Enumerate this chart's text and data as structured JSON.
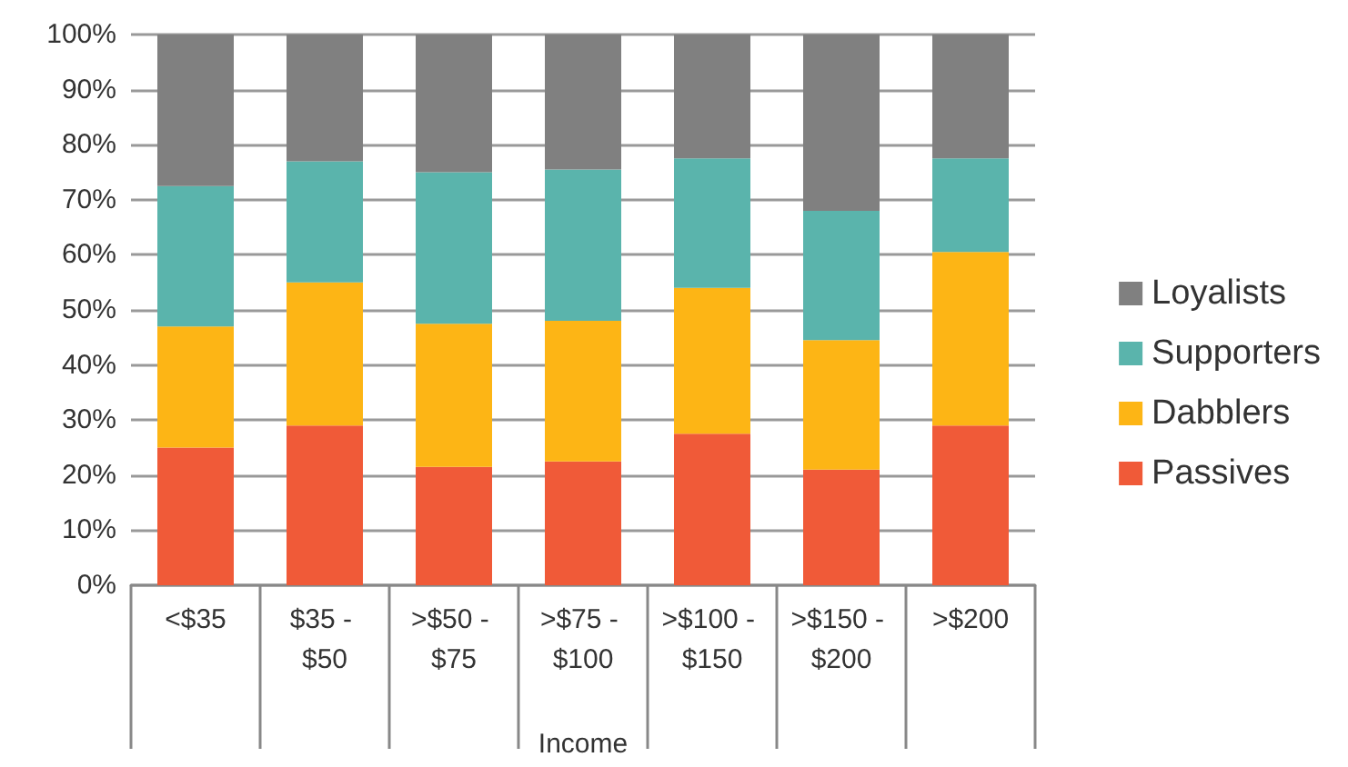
{
  "chart_data": {
    "type": "bar",
    "stacked": true,
    "xlabel": "Income",
    "categories": [
      "<$35",
      "$35 - $50",
      ">$50 - $75",
      ">$75 - $100",
      ">$100 - $150",
      ">$150 - $200",
      ">$200"
    ],
    "series": [
      {
        "name": "Passives",
        "color": "#f05a38",
        "values": [
          25,
          29,
          21.5,
          22.5,
          27.5,
          21,
          29
        ]
      },
      {
        "name": "Dabblers",
        "color": "#fdb515",
        "values": [
          22,
          26,
          26,
          25.5,
          26.5,
          23.5,
          31.5
        ]
      },
      {
        "name": "Supporters",
        "color": "#5ab4ac",
        "values": [
          25.5,
          22,
          27.5,
          27.5,
          23.5,
          23.5,
          17
        ]
      },
      {
        "name": "Loyalists",
        "color": "#808080",
        "values": [
          27.5,
          23,
          25,
          24.5,
          22.5,
          32,
          22.5
        ]
      }
    ],
    "ylim": [
      0,
      100
    ],
    "yticks": [
      {
        "value": 0,
        "label": "0%"
      },
      {
        "value": 10,
        "label": "10%"
      },
      {
        "value": 20,
        "label": "20%"
      },
      {
        "value": 30,
        "label": "30%"
      },
      {
        "value": 40,
        "label": "40%"
      },
      {
        "value": 50,
        "label": "50%"
      },
      {
        "value": 60,
        "label": "60%"
      },
      {
        "value": 70,
        "label": "70%"
      },
      {
        "value": 80,
        "label": "80%"
      },
      {
        "value": 90,
        "label": "90%"
      },
      {
        "value": 100,
        "label": "100%"
      }
    ],
    "grid": "y",
    "legend": "right"
  }
}
